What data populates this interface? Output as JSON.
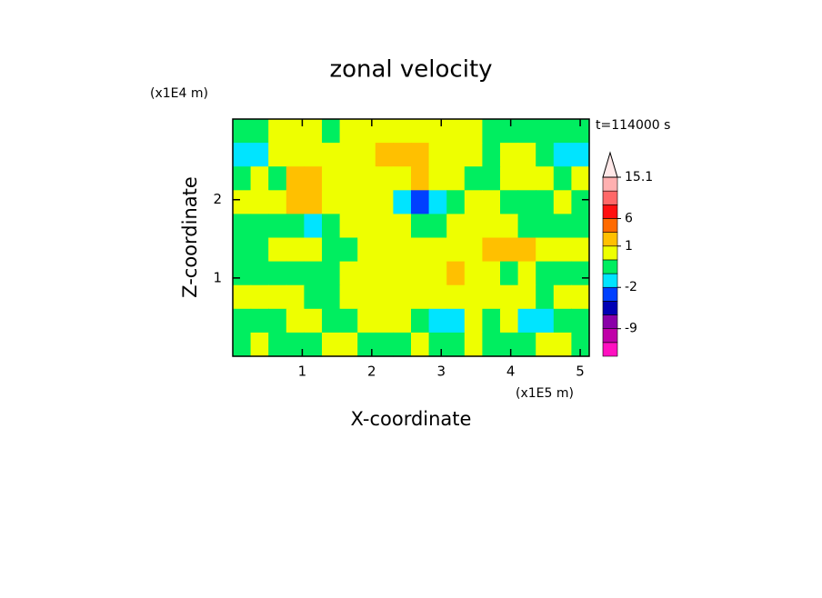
{
  "chart_data": {
    "type": "contour",
    "title": "zonal velocity",
    "xlabel": "X-coordinate",
    "ylabel": "Z-coordinate",
    "x_unit_label": "(x1E5 m)",
    "y_unit_label": "(x1E4 m)",
    "time_label": "t=114000 s",
    "xlim": [
      0,
      5.13
    ],
    "ylim": [
      0,
      3.03
    ],
    "xticks": [
      1,
      2,
      3,
      4,
      5
    ],
    "yticks": [
      1,
      2
    ],
    "values": [
      [
        -0.5,
        -0.5,
        0.5,
        0.5,
        0.5,
        -0.5,
        0.5,
        0.5,
        0.5,
        0.5,
        0.5,
        0.5,
        0.5,
        0.5,
        -0.5,
        -0.5,
        -0.5,
        -0.5,
        -0.5,
        -0.5
      ],
      [
        -1.5,
        -1.5,
        0.5,
        0.5,
        0.5,
        0.5,
        0.5,
        0.5,
        2,
        2,
        2,
        0.5,
        0.5,
        0.5,
        -0.5,
        0.5,
        0.5,
        -0.5,
        -1.5,
        -1.5
      ],
      [
        -0.5,
        0.5,
        -0.5,
        2,
        2,
        0.5,
        0.5,
        0.5,
        0.5,
        0.5,
        2,
        0.5,
        0.5,
        -0.5,
        -0.5,
        0.5,
        0.5,
        0.5,
        -0.5,
        0.5
      ],
      [
        0.5,
        0.5,
        0.5,
        2,
        2,
        0.5,
        0.5,
        0.5,
        0.5,
        -1.5,
        -3,
        -1.5,
        -0.5,
        0.5,
        0.5,
        -0.5,
        -0.5,
        -0.5,
        0.5,
        -0.5
      ],
      [
        -0.5,
        -0.5,
        -0.5,
        -0.5,
        -1.5,
        -0.5,
        0.5,
        0.5,
        0.5,
        0.5,
        -0.5,
        -0.5,
        0.5,
        0.5,
        0.5,
        0.5,
        -0.5,
        -0.5,
        -0.5,
        -0.5
      ],
      [
        -0.5,
        -0.5,
        0.5,
        0.5,
        0.5,
        -0.5,
        -0.5,
        0.5,
        0.5,
        0.5,
        0.5,
        0.5,
        0.5,
        0.5,
        2,
        2,
        2,
        0.5,
        0.5,
        0.5
      ],
      [
        -0.5,
        -0.5,
        -0.5,
        -0.5,
        -0.5,
        -0.5,
        0.5,
        0.5,
        0.5,
        0.5,
        0.5,
        0.5,
        2,
        0.5,
        0.5,
        -0.5,
        0.5,
        -0.5,
        -0.5,
        -0.5
      ],
      [
        0.5,
        0.5,
        0.5,
        0.5,
        -0.5,
        -0.5,
        0.5,
        0.5,
        0.5,
        0.5,
        0.5,
        0.5,
        0.5,
        0.5,
        0.5,
        0.5,
        0.5,
        -0.5,
        0.5,
        0.5
      ],
      [
        -0.5,
        -0.5,
        -0.5,
        0.5,
        0.5,
        -0.5,
        -0.5,
        0.5,
        0.5,
        0.5,
        -0.5,
        -1.5,
        -1.5,
        0.5,
        -0.5,
        0.5,
        -1.5,
        -1.5,
        -0.5,
        -0.5
      ],
      [
        -0.5,
        0.5,
        -0.5,
        -0.5,
        -0.5,
        0.5,
        0.5,
        -0.5,
        -0.5,
        -0.5,
        0.5,
        -0.5,
        -0.5,
        0.5,
        -0.5,
        -0.5,
        -0.5,
        0.5,
        0.5,
        -0.5
      ]
    ],
    "colorbar": {
      "boundaries": [
        -15,
        -12,
        -9,
        -6,
        -4,
        -2,
        -1,
        0,
        1,
        3,
        6,
        9,
        12,
        15.1
      ],
      "colors": [
        "#ff10c0",
        "#c000a8",
        "#8a00a8",
        "#0000b4",
        "#0040ff",
        "#00e4ff",
        "#00ee60",
        "#eeff00",
        "#ffc000",
        "#ff6a00",
        "#ff1010",
        "#ff6868",
        "#ffb0b0"
      ],
      "ticks": [
        15.1,
        6,
        1,
        -2,
        -9
      ]
    }
  }
}
